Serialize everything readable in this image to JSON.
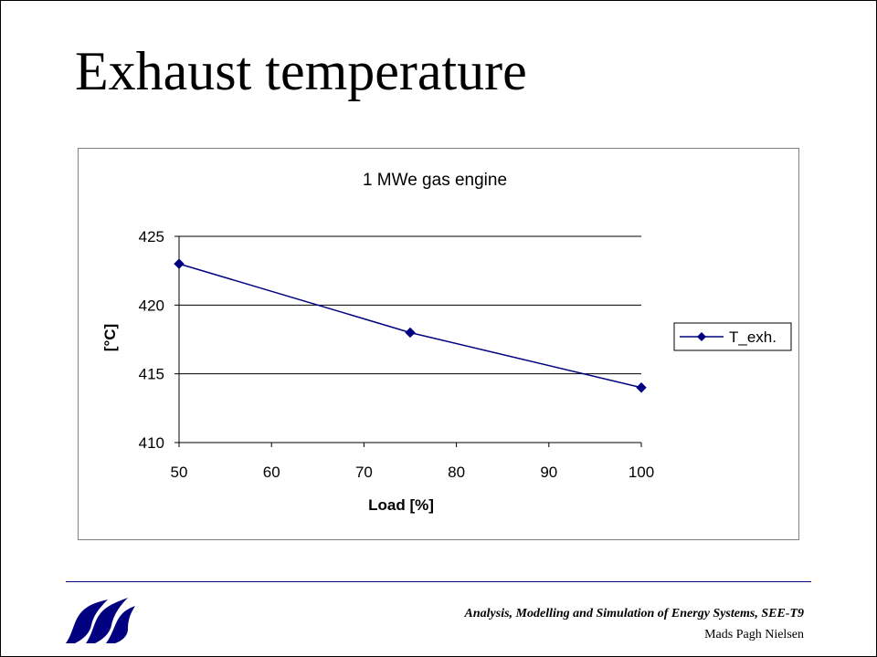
{
  "slide": {
    "title": "Exhaust temperature",
    "footer_course": "Analysis, Modelling  and Simulation of Energy Systems, SEE-T9",
    "footer_author": "Mads Pagh Nielsen",
    "logo_icon": "university-wave-logo-icon",
    "accent_color": "#000080"
  },
  "chart_data": {
    "type": "line",
    "title": "1 MWe gas engine",
    "xlabel": "Load [%]",
    "ylabel": "[°C]",
    "xlim": [
      50,
      100
    ],
    "ylim": [
      410,
      425
    ],
    "xticks": [
      "50",
      "60",
      "70",
      "80",
      "90",
      "100"
    ],
    "yticks": [
      "410",
      "415",
      "420",
      "425"
    ],
    "grid": "horizontal",
    "legend_position": "right",
    "series": [
      {
        "name": "T_exh.",
        "color": "#000080",
        "marker": "diamond",
        "x": [
          50,
          75,
          100
        ],
        "y": [
          423,
          418,
          414
        ]
      }
    ]
  }
}
